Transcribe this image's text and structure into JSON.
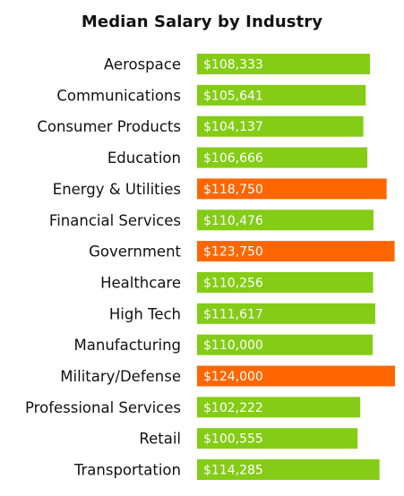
{
  "chart_data": {
    "type": "bar",
    "orientation": "horizontal",
    "title": "Median Salary by Industry",
    "xlabel": "",
    "ylabel": "",
    "xlim": [
      0,
      124000
    ],
    "grid": false,
    "legend": "none",
    "categories": [
      "Aerospace",
      "Communications",
      "Consumer Products",
      "Education",
      "Energy & Utilities",
      "Financial Services",
      "Government",
      "Healthcare",
      "High Tech",
      "Manufacturing",
      "Military/Defense",
      "Professional Services",
      "Retail",
      "Transportation"
    ],
    "values": [
      108333,
      105641,
      104137,
      106666,
      118750,
      110476,
      123750,
      110256,
      111617,
      110000,
      124000,
      102222,
      100555,
      114285
    ],
    "value_labels": [
      "$108,333",
      "$105,641",
      "$104,137",
      "$106,666",
      "$118,750",
      "$110,476",
      "$123,750",
      "$110,256",
      "$111,617",
      "$110,000",
      "$124,000",
      "$102,222",
      "$100,555",
      "$114,285"
    ],
    "highlighted": [
      false,
      false,
      false,
      false,
      true,
      false,
      true,
      false,
      false,
      false,
      true,
      false,
      false,
      false
    ],
    "colors": {
      "default": "#84cc16",
      "highlight": "#ff6600"
    }
  }
}
